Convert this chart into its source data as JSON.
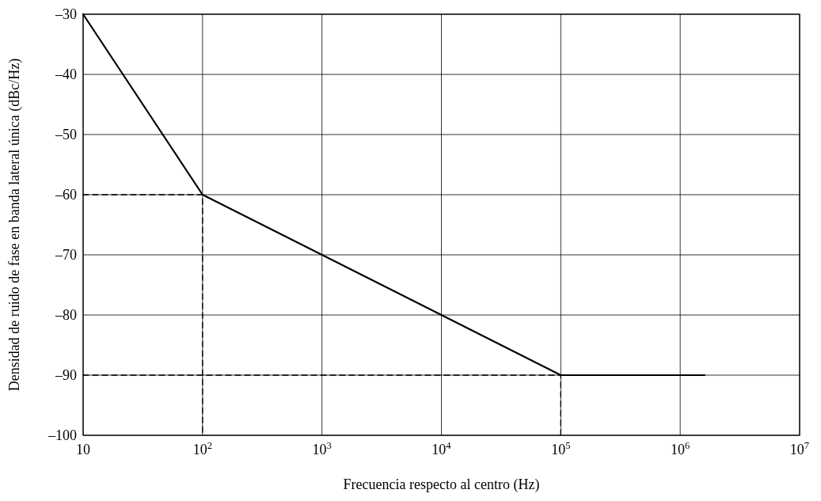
{
  "chart_data": {
    "type": "line",
    "xlabel": "Frecuencia respecto al centro (Hz)",
    "ylabel": "Densidad de ruido de fase en banda lateral única (dBc/Hz)",
    "log": "x",
    "grid": true,
    "marker": "none",
    "xlim": [
      10,
      10000000
    ],
    "xticks": [
      {
        "value": 10,
        "label": "10"
      },
      {
        "value": 100,
        "label": "10$^{2}$"
      },
      {
        "value": 1000,
        "label": "10$^{3}$"
      },
      {
        "value": 10000,
        "label": "10$^{4}$"
      },
      {
        "value": 100000,
        "label": "10$^{5}$"
      },
      {
        "value": 1000000,
        "label": "10$^{6}$"
      },
      {
        "value": 10000000,
        "label": "10$^{7}$"
      }
    ],
    "ylim": [
      -100,
      -30
    ],
    "yticks": [
      {
        "value": -100,
        "label": "–100"
      },
      {
        "value": -90,
        "label": "–90"
      },
      {
        "value": -80,
        "label": "–80"
      },
      {
        "value": -70,
        "label": "–70"
      },
      {
        "value": -60,
        "label": "–60"
      },
      {
        "value": -50,
        "label": "–50"
      },
      {
        "value": -40,
        "label": "–40"
      },
      {
        "value": -30,
        "label": "–30"
      }
    ],
    "series": [
      {
        "color": "#000000",
        "line_style": "dashed",
        "x": [
          10,
          100,
          100
        ],
        "values": [
          -60,
          -60,
          -100
        ]
      },
      {
        "color": "#000000",
        "line_style": "dashed",
        "x": [
          10,
          100000,
          100000
        ],
        "values": [
          -90,
          -90,
          -100
        ]
      },
      {
        "color": "#000000",
        "line_style": "solid",
        "x": [
          10,
          100,
          100000,
          1600000
        ],
        "values": [
          -30,
          -60,
          -90,
          -90
        ]
      }
    ]
  }
}
